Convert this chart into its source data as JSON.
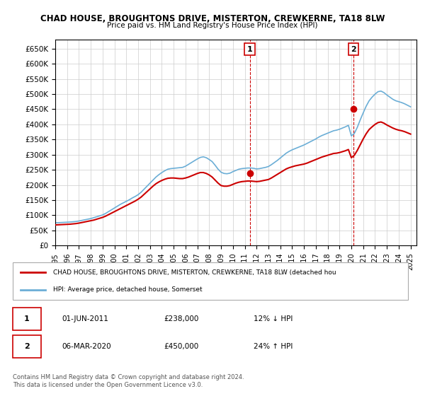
{
  "title1": "CHAD HOUSE, BROUGHTONS DRIVE, MISTERTON, CREWKERNE, TA18 8LW",
  "title2": "Price paid vs. HM Land Registry's House Price Index (HPI)",
  "ylim": [
    0,
    680000
  ],
  "yticks": [
    0,
    50000,
    100000,
    150000,
    200000,
    250000,
    300000,
    350000,
    400000,
    450000,
    500000,
    550000,
    600000,
    650000
  ],
  "ytick_labels": [
    "£0",
    "£50K",
    "£100K",
    "£150K",
    "£200K",
    "£250K",
    "£300K",
    "£350K",
    "£400K",
    "£450K",
    "£500K",
    "£550K",
    "£600K",
    "£650K"
  ],
  "xlim_start": 1995.0,
  "xlim_end": 2025.5,
  "xticks": [
    1995,
    1996,
    1997,
    1998,
    1999,
    2000,
    2001,
    2002,
    2003,
    2004,
    2005,
    2006,
    2007,
    2008,
    2009,
    2010,
    2011,
    2012,
    2013,
    2014,
    2015,
    2016,
    2017,
    2018,
    2019,
    2020,
    2021,
    2022,
    2023,
    2024,
    2025
  ],
  "hpi_color": "#6baed6",
  "price_color": "#cc0000",
  "dashed_line_color": "#cc0000",
  "point1_x": 2011.42,
  "point1_y": 238000,
  "point1_label": "1",
  "point2_x": 2020.17,
  "point2_y": 450000,
  "point2_label": "2",
  "legend_label1": "CHAD HOUSE, BROUGHTONS DRIVE, MISTERTON, CREWKERNE, TA18 8LW (detached hou",
  "legend_label2": "HPI: Average price, detached house, Somerset",
  "table_row1": [
    "1",
    "01-JUN-2011",
    "£238,000",
    "12% ↓ HPI"
  ],
  "table_row2": [
    "2",
    "06-MAR-2020",
    "£450,000",
    "24% ↑ HPI"
  ],
  "footer": "Contains HM Land Registry data © Crown copyright and database right 2024.\nThis data is licensed under the Open Government Licence v3.0.",
  "hpi_data_x": [
    1995.0,
    1995.25,
    1995.5,
    1995.75,
    1996.0,
    1996.25,
    1996.5,
    1996.75,
    1997.0,
    1997.25,
    1997.5,
    1997.75,
    1998.0,
    1998.25,
    1998.5,
    1998.75,
    1999.0,
    1999.25,
    1999.5,
    1999.75,
    2000.0,
    2000.25,
    2000.5,
    2000.75,
    2001.0,
    2001.25,
    2001.5,
    2001.75,
    2002.0,
    2002.25,
    2002.5,
    2002.75,
    2003.0,
    2003.25,
    2003.5,
    2003.75,
    2004.0,
    2004.25,
    2004.5,
    2004.75,
    2005.0,
    2005.25,
    2005.5,
    2005.75,
    2006.0,
    2006.25,
    2006.5,
    2006.75,
    2007.0,
    2007.25,
    2007.5,
    2007.75,
    2008.0,
    2008.25,
    2008.5,
    2008.75,
    2009.0,
    2009.25,
    2009.5,
    2009.75,
    2010.0,
    2010.25,
    2010.5,
    2010.75,
    2011.0,
    2011.25,
    2011.5,
    2011.75,
    2012.0,
    2012.25,
    2012.5,
    2012.75,
    2013.0,
    2013.25,
    2013.5,
    2013.75,
    2014.0,
    2014.25,
    2014.5,
    2014.75,
    2015.0,
    2015.25,
    2015.5,
    2015.75,
    2016.0,
    2016.25,
    2016.5,
    2016.75,
    2017.0,
    2017.25,
    2017.5,
    2017.75,
    2018.0,
    2018.25,
    2018.5,
    2018.75,
    2019.0,
    2019.25,
    2019.5,
    2019.75,
    2020.0,
    2020.25,
    2020.5,
    2020.75,
    2021.0,
    2021.25,
    2021.5,
    2021.75,
    2022.0,
    2022.25,
    2022.5,
    2022.75,
    2023.0,
    2023.25,
    2023.5,
    2023.75,
    2024.0,
    2024.25,
    2024.5,
    2024.75,
    2025.0
  ],
  "hpi_data_y": [
    75000,
    75500,
    76000,
    76500,
    77000,
    77500,
    78500,
    79500,
    81000,
    83000,
    85000,
    87000,
    89000,
    92000,
    95000,
    98000,
    101000,
    106000,
    112000,
    118000,
    124000,
    130000,
    136000,
    141000,
    146000,
    151000,
    157000,
    162000,
    168000,
    176000,
    186000,
    196000,
    206000,
    216000,
    226000,
    234000,
    241000,
    247000,
    252000,
    254000,
    255000,
    256000,
    257000,
    258000,
    262000,
    268000,
    274000,
    280000,
    286000,
    291000,
    293000,
    290000,
    284000,
    277000,
    265000,
    252000,
    242000,
    238000,
    237000,
    239000,
    244000,
    248000,
    252000,
    254000,
    255000,
    256000,
    256000,
    255000,
    253000,
    254000,
    256000,
    258000,
    261000,
    267000,
    274000,
    281000,
    289000,
    297000,
    305000,
    311000,
    316000,
    320000,
    324000,
    328000,
    332000,
    337000,
    342000,
    347000,
    352000,
    358000,
    363000,
    367000,
    371000,
    375000,
    379000,
    381000,
    384000,
    388000,
    392000,
    397000,
    362000,
    370000,
    390000,
    415000,
    438000,
    460000,
    478000,
    490000,
    500000,
    508000,
    510000,
    505000,
    497000,
    490000,
    483000,
    478000,
    475000,
    472000,
    468000,
    463000,
    458000
  ],
  "price_data_x": [
    1995.0,
    1995.25,
    1995.5,
    1995.75,
    1996.0,
    1996.25,
    1996.5,
    1996.75,
    1997.0,
    1997.25,
    1997.5,
    1997.75,
    1998.0,
    1998.25,
    1998.5,
    1998.75,
    1999.0,
    1999.25,
    1999.5,
    1999.75,
    2000.0,
    2000.25,
    2000.5,
    2000.75,
    2001.0,
    2001.25,
    2001.5,
    2001.75,
    2002.0,
    2002.25,
    2002.5,
    2002.75,
    2003.0,
    2003.25,
    2003.5,
    2003.75,
    2004.0,
    2004.25,
    2004.5,
    2004.75,
    2005.0,
    2005.25,
    2005.5,
    2005.75,
    2006.0,
    2006.25,
    2006.5,
    2006.75,
    2007.0,
    2007.25,
    2007.5,
    2007.75,
    2008.0,
    2008.25,
    2008.5,
    2008.75,
    2009.0,
    2009.25,
    2009.5,
    2009.75,
    2010.0,
    2010.25,
    2010.5,
    2010.75,
    2011.0,
    2011.25,
    2011.5,
    2011.75,
    2012.0,
    2012.25,
    2012.5,
    2012.75,
    2013.0,
    2013.25,
    2013.5,
    2013.75,
    2014.0,
    2014.25,
    2014.5,
    2014.75,
    2015.0,
    2015.25,
    2015.5,
    2015.75,
    2016.0,
    2016.25,
    2016.5,
    2016.75,
    2017.0,
    2017.25,
    2017.5,
    2017.75,
    2018.0,
    2018.25,
    2018.5,
    2018.75,
    2019.0,
    2019.25,
    2019.5,
    2019.75,
    2020.0,
    2020.25,
    2020.5,
    2020.75,
    2021.0,
    2021.25,
    2021.5,
    2021.75,
    2022.0,
    2022.25,
    2022.5,
    2022.75,
    2023.0,
    2023.25,
    2023.5,
    2023.75,
    2024.0,
    2024.25,
    2024.5,
    2024.75,
    2025.0
  ],
  "price_data_y": [
    68000,
    68500,
    69000,
    69500,
    70000,
    70500,
    71500,
    72500,
    74000,
    76000,
    78000,
    80000,
    82000,
    84000,
    87000,
    90000,
    93000,
    97000,
    102000,
    107000,
    112000,
    117000,
    122000,
    127000,
    132000,
    137000,
    142000,
    147000,
    153000,
    160000,
    169000,
    178000,
    187000,
    196000,
    204000,
    210000,
    215000,
    219000,
    222000,
    223000,
    223000,
    222000,
    221000,
    221000,
    223000,
    226000,
    230000,
    234000,
    238000,
    241000,
    241000,
    238000,
    233000,
    226000,
    216000,
    206000,
    198000,
    196000,
    196000,
    198000,
    202000,
    206000,
    209000,
    211000,
    212000,
    213000,
    213000,
    212000,
    211000,
    212000,
    214000,
    216000,
    218000,
    223000,
    229000,
    235000,
    241000,
    247000,
    253000,
    257000,
    260000,
    263000,
    265000,
    267000,
    269000,
    272000,
    276000,
    280000,
    284000,
    288000,
    292000,
    295000,
    298000,
    301000,
    304000,
    305000,
    307000,
    310000,
    313000,
    317000,
    290000,
    298000,
    314000,
    333000,
    352000,
    369000,
    383000,
    392000,
    400000,
    406000,
    408000,
    404000,
    398000,
    393000,
    388000,
    384000,
    381000,
    379000,
    376000,
    372000,
    368000
  ]
}
